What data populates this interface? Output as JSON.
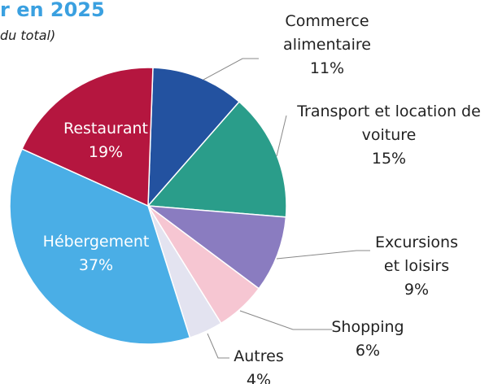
{
  "chart_data": {
    "type": "pie",
    "title": "r en 2025",
    "subtitle": "du total)",
    "categories": [
      "Commerce alimentaire",
      "Transport et location de voiture",
      "Excursions et loisirs",
      "Shopping",
      "Autres",
      "Hébergement",
      "Restaurant"
    ],
    "values": [
      11,
      15,
      9,
      6,
      4,
      37,
      19
    ],
    "value_labels": [
      "11%",
      "15%",
      "9%",
      "6%",
      "4%",
      "37%",
      "19%"
    ],
    "colors": [
      "#2352a0",
      "#2a9d8a",
      "#8a7cc0",
      "#f6c6d2",
      "#e3e3f0",
      "#4aaee6",
      "#b5163f"
    ]
  }
}
